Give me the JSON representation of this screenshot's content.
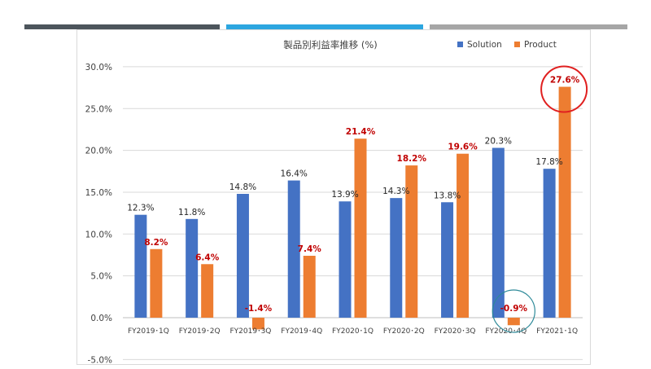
{
  "colors": {
    "solution": "#4472C4",
    "product": "#ED7D31",
    "product_label": "#C00000",
    "highlight_red": "#E02020",
    "highlight_teal": "#2E8A99",
    "deco_dark": "#4D555C",
    "deco_blue": "#2CA6E0",
    "deco_gray": "#A6A6A6"
  },
  "chart_data": {
    "type": "bar",
    "title": "製品別利益率推移 (%)",
    "xlabel": "",
    "ylabel": "",
    "categories": [
      "FY2019･1Q",
      "FY2019･2Q",
      "FY2019･3Q",
      "FY2019･4Q",
      "FY2020･1Q",
      "FY2020･2Q",
      "FY2020･3Q",
      "FY2020･4Q",
      "FY2021･1Q"
    ],
    "series": [
      {
        "name": "Solution",
        "values": [
          12.3,
          11.8,
          14.8,
          16.4,
          13.9,
          14.3,
          13.8,
          20.3,
          17.8
        ],
        "labels": [
          "12.3%",
          "11.8%",
          "14.8%",
          "16.4%",
          "13.9%",
          "14.3%",
          "13.8%",
          "20.3%",
          "17.8%"
        ]
      },
      {
        "name": "Product",
        "values": [
          8.2,
          6.4,
          -1.4,
          7.4,
          21.4,
          18.2,
          19.6,
          -0.9,
          27.6
        ],
        "labels": [
          "8.2%",
          "6.4%",
          "-1.4%",
          "7.4%",
          "21.4%",
          "18.2%",
          "19.6%",
          "-0.9%",
          "27.6%"
        ]
      }
    ],
    "ylim": [
      -5,
      30
    ],
    "yticks": [
      30,
      25,
      20,
      15,
      10,
      5,
      0,
      -5
    ],
    "ytick_labels": [
      "30.0%",
      "25.0%",
      "20.0%",
      "15.0%",
      "10.0%",
      "5.0%",
      "0.0%",
      "-5.0%"
    ],
    "grid": true,
    "legend_position": "top-right",
    "highlights": [
      {
        "series": "Product",
        "index": 8,
        "shape": "circle",
        "color": "red"
      },
      {
        "series": "Product",
        "index": 7,
        "shape": "circle",
        "color": "teal"
      }
    ]
  }
}
